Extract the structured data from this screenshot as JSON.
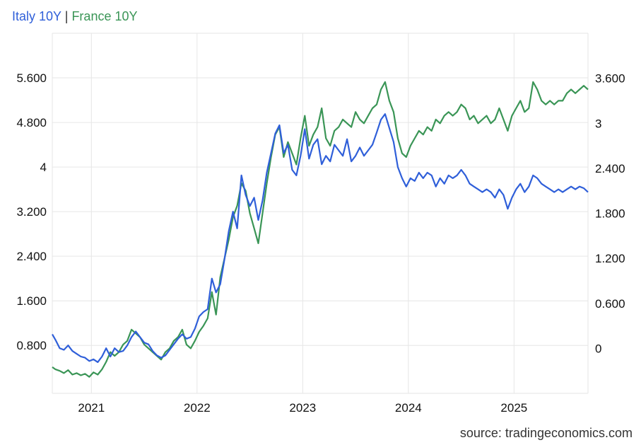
{
  "chart_data": {
    "type": "line",
    "legend": [
      "Italy 10Y",
      "France 10Y"
    ],
    "legend_separator": "|",
    "source": "source: tradingeconomics.com",
    "colors": {
      "italy": "#2f5fd9",
      "france": "#3a9556",
      "grid": "#e6e6e6"
    },
    "x_axis": {
      "range": [
        2020.63,
        2025.7
      ],
      "ticks": [
        2021,
        2022,
        2023,
        2024,
        2025
      ],
      "tick_labels": [
        "2021",
        "2022",
        "2023",
        "2024",
        "2025"
      ]
    },
    "y_left": {
      "label": "Italy 10Y",
      "range": [
        -0.06,
        6.4
      ],
      "ticks": [
        0.8,
        1.6,
        2.4,
        3.2,
        4.0,
        4.8,
        5.6
      ],
      "tick_labels": [
        "0.800",
        "1.600",
        "2.400",
        "3.200",
        "4",
        "4.800",
        "5.600"
      ]
    },
    "y_right": {
      "label": "France 10Y",
      "range": [
        -0.6,
        4.2
      ],
      "ticks": [
        0,
        0.6,
        1.2,
        1.8,
        2.4,
        3.0,
        3.6
      ],
      "tick_labels": [
        "0",
        "0.600",
        "1.200",
        "1.800",
        "2.400",
        "3",
        "3.600"
      ]
    },
    "series": [
      {
        "name": "Italy 10Y",
        "axis": "left",
        "points": [
          [
            2020.63,
            1.0
          ],
          [
            2020.66,
            0.9
          ],
          [
            2020.7,
            0.75
          ],
          [
            2020.74,
            0.72
          ],
          [
            2020.78,
            0.8
          ],
          [
            2020.82,
            0.7
          ],
          [
            2020.86,
            0.65
          ],
          [
            2020.9,
            0.6
          ],
          [
            2020.94,
            0.58
          ],
          [
            2020.98,
            0.52
          ],
          [
            2021.02,
            0.55
          ],
          [
            2021.06,
            0.5
          ],
          [
            2021.1,
            0.6
          ],
          [
            2021.14,
            0.75
          ],
          [
            2021.18,
            0.6
          ],
          [
            2021.22,
            0.75
          ],
          [
            2021.26,
            0.68
          ],
          [
            2021.3,
            0.7
          ],
          [
            2021.34,
            0.8
          ],
          [
            2021.38,
            0.95
          ],
          [
            2021.42,
            1.05
          ],
          [
            2021.46,
            0.95
          ],
          [
            2021.5,
            0.85
          ],
          [
            2021.54,
            0.82
          ],
          [
            2021.58,
            0.7
          ],
          [
            2021.62,
            0.62
          ],
          [
            2021.66,
            0.58
          ],
          [
            2021.7,
            0.62
          ],
          [
            2021.74,
            0.72
          ],
          [
            2021.78,
            0.82
          ],
          [
            2021.82,
            0.92
          ],
          [
            2021.86,
            1.0
          ],
          [
            2021.9,
            0.92
          ],
          [
            2021.94,
            0.95
          ],
          [
            2021.98,
            1.1
          ],
          [
            2022.02,
            1.32
          ],
          [
            2022.06,
            1.4
          ],
          [
            2022.1,
            1.45
          ],
          [
            2022.14,
            2.0
          ],
          [
            2022.18,
            1.75
          ],
          [
            2022.22,
            1.9
          ],
          [
            2022.26,
            2.35
          ],
          [
            2022.3,
            2.85
          ],
          [
            2022.34,
            3.2
          ],
          [
            2022.38,
            2.9
          ],
          [
            2022.42,
            3.85
          ],
          [
            2022.46,
            3.5
          ],
          [
            2022.5,
            3.3
          ],
          [
            2022.54,
            3.45
          ],
          [
            2022.58,
            3.05
          ],
          [
            2022.62,
            3.4
          ],
          [
            2022.66,
            3.9
          ],
          [
            2022.7,
            4.25
          ],
          [
            2022.74,
            4.6
          ],
          [
            2022.78,
            4.75
          ],
          [
            2022.82,
            4.25
          ],
          [
            2022.86,
            4.4
          ],
          [
            2022.9,
            3.95
          ],
          [
            2022.94,
            3.85
          ],
          [
            2022.98,
            4.2
          ],
          [
            2023.02,
            4.68
          ],
          [
            2023.06,
            4.15
          ],
          [
            2023.1,
            4.4
          ],
          [
            2023.14,
            4.5
          ],
          [
            2023.18,
            4.05
          ],
          [
            2023.22,
            4.2
          ],
          [
            2023.26,
            4.1
          ],
          [
            2023.3,
            4.4
          ],
          [
            2023.34,
            4.3
          ],
          [
            2023.38,
            4.2
          ],
          [
            2023.42,
            4.5
          ],
          [
            2023.46,
            4.1
          ],
          [
            2023.5,
            4.2
          ],
          [
            2023.54,
            4.35
          ],
          [
            2023.58,
            4.2
          ],
          [
            2023.62,
            4.3
          ],
          [
            2023.66,
            4.4
          ],
          [
            2023.7,
            4.62
          ],
          [
            2023.74,
            4.85
          ],
          [
            2023.78,
            4.95
          ],
          [
            2023.82,
            4.7
          ],
          [
            2023.86,
            4.45
          ],
          [
            2023.9,
            4.0
          ],
          [
            2023.94,
            3.8
          ],
          [
            2023.98,
            3.65
          ],
          [
            2024.02,
            3.8
          ],
          [
            2024.06,
            3.75
          ],
          [
            2024.1,
            3.9
          ],
          [
            2024.14,
            3.8
          ],
          [
            2024.18,
            3.9
          ],
          [
            2024.22,
            3.85
          ],
          [
            2024.26,
            3.65
          ],
          [
            2024.3,
            3.8
          ],
          [
            2024.34,
            3.7
          ],
          [
            2024.38,
            3.85
          ],
          [
            2024.42,
            3.8
          ],
          [
            2024.46,
            3.85
          ],
          [
            2024.5,
            3.95
          ],
          [
            2024.54,
            3.85
          ],
          [
            2024.58,
            3.7
          ],
          [
            2024.62,
            3.65
          ],
          [
            2024.66,
            3.6
          ],
          [
            2024.7,
            3.55
          ],
          [
            2024.74,
            3.6
          ],
          [
            2024.78,
            3.55
          ],
          [
            2024.82,
            3.45
          ],
          [
            2024.86,
            3.6
          ],
          [
            2024.9,
            3.5
          ],
          [
            2024.94,
            3.25
          ],
          [
            2024.98,
            3.45
          ],
          [
            2025.02,
            3.6
          ],
          [
            2025.06,
            3.7
          ],
          [
            2025.1,
            3.55
          ],
          [
            2025.14,
            3.65
          ],
          [
            2025.18,
            3.85
          ],
          [
            2025.22,
            3.8
          ],
          [
            2025.26,
            3.7
          ],
          [
            2025.3,
            3.65
          ],
          [
            2025.34,
            3.6
          ],
          [
            2025.38,
            3.55
          ],
          [
            2025.42,
            3.6
          ],
          [
            2025.46,
            3.55
          ],
          [
            2025.5,
            3.6
          ],
          [
            2025.54,
            3.65
          ],
          [
            2025.58,
            3.6
          ],
          [
            2025.62,
            3.65
          ],
          [
            2025.66,
            3.62
          ],
          [
            2025.7,
            3.55
          ]
        ]
      },
      {
        "name": "France 10Y",
        "axis": "right",
        "points": [
          [
            2020.63,
            -0.25
          ],
          [
            2020.66,
            -0.28
          ],
          [
            2020.7,
            -0.3
          ],
          [
            2020.74,
            -0.33
          ],
          [
            2020.78,
            -0.29
          ],
          [
            2020.82,
            -0.35
          ],
          [
            2020.86,
            -0.33
          ],
          [
            2020.9,
            -0.36
          ],
          [
            2020.94,
            -0.34
          ],
          [
            2020.98,
            -0.38
          ],
          [
            2021.02,
            -0.32
          ],
          [
            2021.06,
            -0.35
          ],
          [
            2021.1,
            -0.28
          ],
          [
            2021.14,
            -0.18
          ],
          [
            2021.18,
            -0.05
          ],
          [
            2021.22,
            -0.1
          ],
          [
            2021.26,
            -0.05
          ],
          [
            2021.3,
            0.05
          ],
          [
            2021.34,
            0.1
          ],
          [
            2021.38,
            0.25
          ],
          [
            2021.42,
            0.2
          ],
          [
            2021.46,
            0.15
          ],
          [
            2021.5,
            0.05
          ],
          [
            2021.54,
            0.0
          ],
          [
            2021.58,
            -0.05
          ],
          [
            2021.62,
            -0.1
          ],
          [
            2021.66,
            -0.15
          ],
          [
            2021.7,
            -0.05
          ],
          [
            2021.74,
            0.0
          ],
          [
            2021.78,
            0.1
          ],
          [
            2021.82,
            0.15
          ],
          [
            2021.86,
            0.25
          ],
          [
            2021.9,
            0.05
          ],
          [
            2021.94,
            0.0
          ],
          [
            2021.98,
            0.1
          ],
          [
            2022.02,
            0.22
          ],
          [
            2022.06,
            0.3
          ],
          [
            2022.1,
            0.4
          ],
          [
            2022.14,
            0.75
          ],
          [
            2022.18,
            0.45
          ],
          [
            2022.22,
            0.95
          ],
          [
            2022.26,
            1.2
          ],
          [
            2022.3,
            1.45
          ],
          [
            2022.34,
            1.75
          ],
          [
            2022.38,
            1.9
          ],
          [
            2022.42,
            2.2
          ],
          [
            2022.46,
            2.1
          ],
          [
            2022.5,
            1.8
          ],
          [
            2022.54,
            1.6
          ],
          [
            2022.58,
            1.4
          ],
          [
            2022.62,
            1.8
          ],
          [
            2022.66,
            2.2
          ],
          [
            2022.7,
            2.55
          ],
          [
            2022.74,
            2.85
          ],
          [
            2022.78,
            2.95
          ],
          [
            2022.82,
            2.55
          ],
          [
            2022.86,
            2.75
          ],
          [
            2022.9,
            2.6
          ],
          [
            2022.94,
            2.45
          ],
          [
            2022.98,
            2.8
          ],
          [
            2023.02,
            3.1
          ],
          [
            2023.06,
            2.7
          ],
          [
            2023.1,
            2.85
          ],
          [
            2023.14,
            2.95
          ],
          [
            2023.18,
            3.2
          ],
          [
            2023.22,
            2.8
          ],
          [
            2023.26,
            2.7
          ],
          [
            2023.3,
            2.9
          ],
          [
            2023.34,
            2.95
          ],
          [
            2023.38,
            3.05
          ],
          [
            2023.42,
            3.0
          ],
          [
            2023.46,
            2.95
          ],
          [
            2023.5,
            3.15
          ],
          [
            2023.54,
            3.05
          ],
          [
            2023.58,
            3.0
          ],
          [
            2023.62,
            3.1
          ],
          [
            2023.66,
            3.2
          ],
          [
            2023.7,
            3.25
          ],
          [
            2023.74,
            3.45
          ],
          [
            2023.78,
            3.55
          ],
          [
            2023.82,
            3.3
          ],
          [
            2023.86,
            3.15
          ],
          [
            2023.9,
            2.8
          ],
          [
            2023.94,
            2.6
          ],
          [
            2023.98,
            2.55
          ],
          [
            2024.02,
            2.7
          ],
          [
            2024.06,
            2.8
          ],
          [
            2024.1,
            2.9
          ],
          [
            2024.14,
            2.85
          ],
          [
            2024.18,
            2.95
          ],
          [
            2024.22,
            2.9
          ],
          [
            2024.26,
            3.05
          ],
          [
            2024.3,
            3.0
          ],
          [
            2024.34,
            3.1
          ],
          [
            2024.38,
            3.15
          ],
          [
            2024.42,
            3.1
          ],
          [
            2024.46,
            3.15
          ],
          [
            2024.5,
            3.25
          ],
          [
            2024.54,
            3.2
          ],
          [
            2024.58,
            3.05
          ],
          [
            2024.62,
            3.1
          ],
          [
            2024.66,
            3.0
          ],
          [
            2024.7,
            3.05
          ],
          [
            2024.74,
            3.1
          ],
          [
            2024.78,
            3.0
          ],
          [
            2024.82,
            3.05
          ],
          [
            2024.86,
            3.2
          ],
          [
            2024.9,
            3.05
          ],
          [
            2024.94,
            2.9
          ],
          [
            2024.98,
            3.1
          ],
          [
            2025.02,
            3.2
          ],
          [
            2025.06,
            3.3
          ],
          [
            2025.1,
            3.15
          ],
          [
            2025.14,
            3.2
          ],
          [
            2025.18,
            3.55
          ],
          [
            2025.22,
            3.45
          ],
          [
            2025.26,
            3.3
          ],
          [
            2025.3,
            3.25
          ],
          [
            2025.34,
            3.3
          ],
          [
            2025.38,
            3.25
          ],
          [
            2025.42,
            3.3
          ],
          [
            2025.46,
            3.3
          ],
          [
            2025.5,
            3.4
          ],
          [
            2025.54,
            3.45
          ],
          [
            2025.58,
            3.4
          ],
          [
            2025.62,
            3.45
          ],
          [
            2025.66,
            3.5
          ],
          [
            2025.7,
            3.45
          ]
        ]
      }
    ]
  }
}
